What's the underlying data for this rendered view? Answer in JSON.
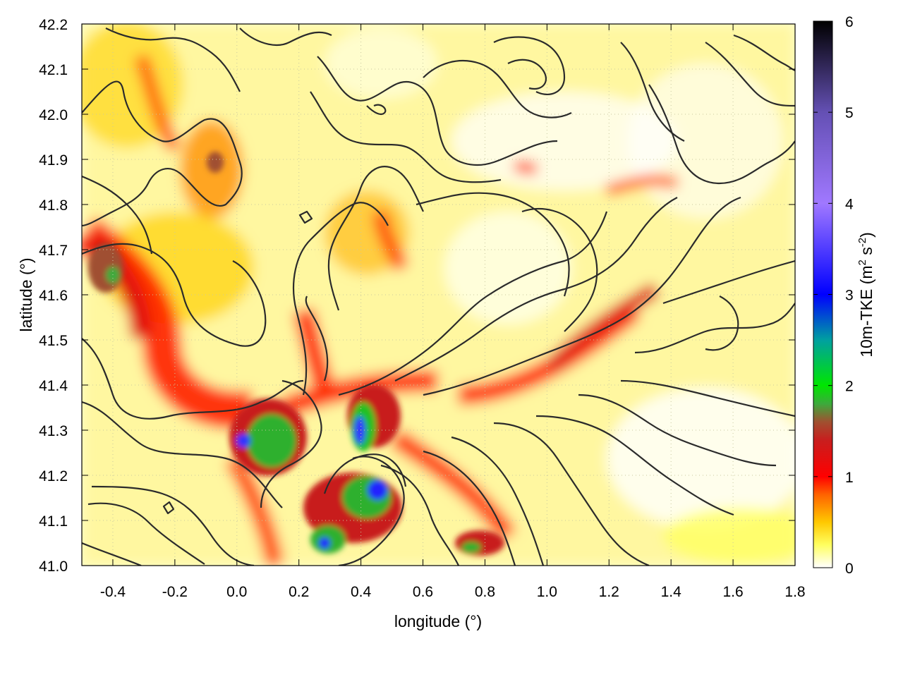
{
  "chart_data": {
    "type": "heatmap",
    "title": "",
    "xlabel": "longitude (°)",
    "ylabel": "latitude (°)",
    "xlim": [
      -0.5,
      1.8
    ],
    "ylim": [
      41.0,
      42.2
    ],
    "x_ticks": [
      "-0.4",
      "-0.2",
      "0.0",
      "0.2",
      "0.4",
      "0.6",
      "0.8",
      "1.0",
      "1.2",
      "1.4",
      "1.6",
      "1.8"
    ],
    "y_ticks": [
      "42.2",
      "42.1",
      "42.0",
      "41.9",
      "41.8",
      "41.7",
      "41.6",
      "41.5",
      "41.4",
      "41.3",
      "41.2",
      "41.1",
      "41.0"
    ],
    "grid": true,
    "colorbar": {
      "label": "10m-TKE (m² s⁻²)",
      "label_main": "10m-TKE (m",
      "label_sup1": "2",
      "label_mid": " s",
      "label_sup2": "-2",
      "label_end": ")",
      "range": [
        0,
        6
      ],
      "ticks": [
        "6",
        "5",
        "4",
        "3",
        "2",
        "1",
        "0"
      ],
      "stops": [
        {
          "value": 0.0,
          "color": "#ffffff"
        },
        {
          "value": 0.25,
          "color": "#ffff60"
        },
        {
          "value": 0.5,
          "color": "#ffc800"
        },
        {
          "value": 0.8,
          "color": "#ff6400"
        },
        {
          "value": 1.0,
          "color": "#ff0000"
        },
        {
          "value": 1.4,
          "color": "#c81e1e"
        },
        {
          "value": 1.6,
          "color": "#a05030"
        },
        {
          "value": 1.8,
          "color": "#3caa3c"
        },
        {
          "value": 2.0,
          "color": "#00e600"
        },
        {
          "value": 2.5,
          "color": "#00a0a0"
        },
        {
          "value": 3.0,
          "color": "#0000ff"
        },
        {
          "value": 4.0,
          "color": "#a078ff"
        },
        {
          "value": 5.0,
          "color": "#6450b4"
        },
        {
          "value": 6.0,
          "color": "#000000"
        }
      ]
    },
    "high_tke_features": [
      {
        "region": "diagonal band",
        "lon": [
          -0.5,
          -0.3
        ],
        "lat": [
          41.3,
          41.7
        ],
        "level": 1.3
      },
      {
        "region": "cores",
        "lon": [
          0.0,
          0.2
        ],
        "lat": [
          41.2,
          41.35
        ],
        "level": 2.2
      },
      {
        "region": "cores",
        "lon": [
          0.35,
          0.5
        ],
        "lat": [
          41.2,
          41.35
        ],
        "level": 2.6
      },
      {
        "region": "cores",
        "lon": [
          0.25,
          0.5
        ],
        "lat": [
          41.0,
          41.2
        ],
        "level": 2.4
      },
      {
        "region": "east band",
        "lon": [
          0.9,
          1.35
        ],
        "lat": [
          41.45,
          41.6
        ],
        "level": 1.2
      }
    ],
    "contours": "terrain elevation isolines (unlabeled)"
  }
}
